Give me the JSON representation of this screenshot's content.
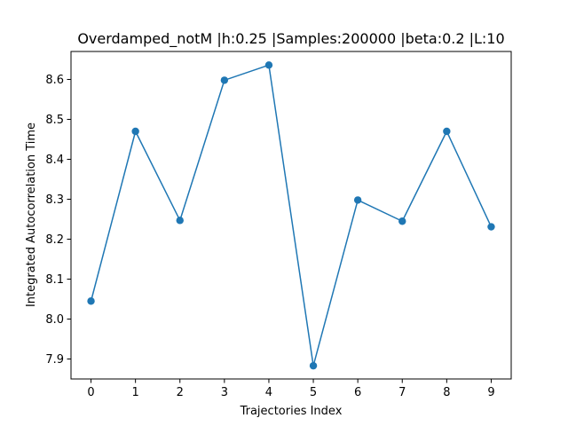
{
  "chart_data": {
    "type": "line",
    "title": "Overdamped_notM |h:0.25 |Samples:200000 |beta:0.2 |L:10",
    "xlabel": "Trajectories Index",
    "ylabel": "Integrated Autocorrelation Time",
    "x": [
      0,
      1,
      2,
      3,
      4,
      5,
      6,
      7,
      8,
      9
    ],
    "series": [
      {
        "values": [
          8.045,
          8.47,
          8.247,
          8.598,
          8.636,
          7.883,
          8.298,
          8.245,
          8.47,
          8.231
        ],
        "color": "#1f77b4",
        "marker": "circle"
      }
    ],
    "xlim": [
      -0.45,
      9.45
    ],
    "ylim": [
      7.85,
      8.67
    ],
    "xticks": [
      "0",
      "1",
      "2",
      "3",
      "4",
      "5",
      "6",
      "7",
      "8",
      "9"
    ],
    "yticks": [
      "7.9",
      "8.0",
      "8.1",
      "8.2",
      "8.3",
      "8.4",
      "8.5",
      "8.6"
    ],
    "grid": false,
    "legend": false
  }
}
